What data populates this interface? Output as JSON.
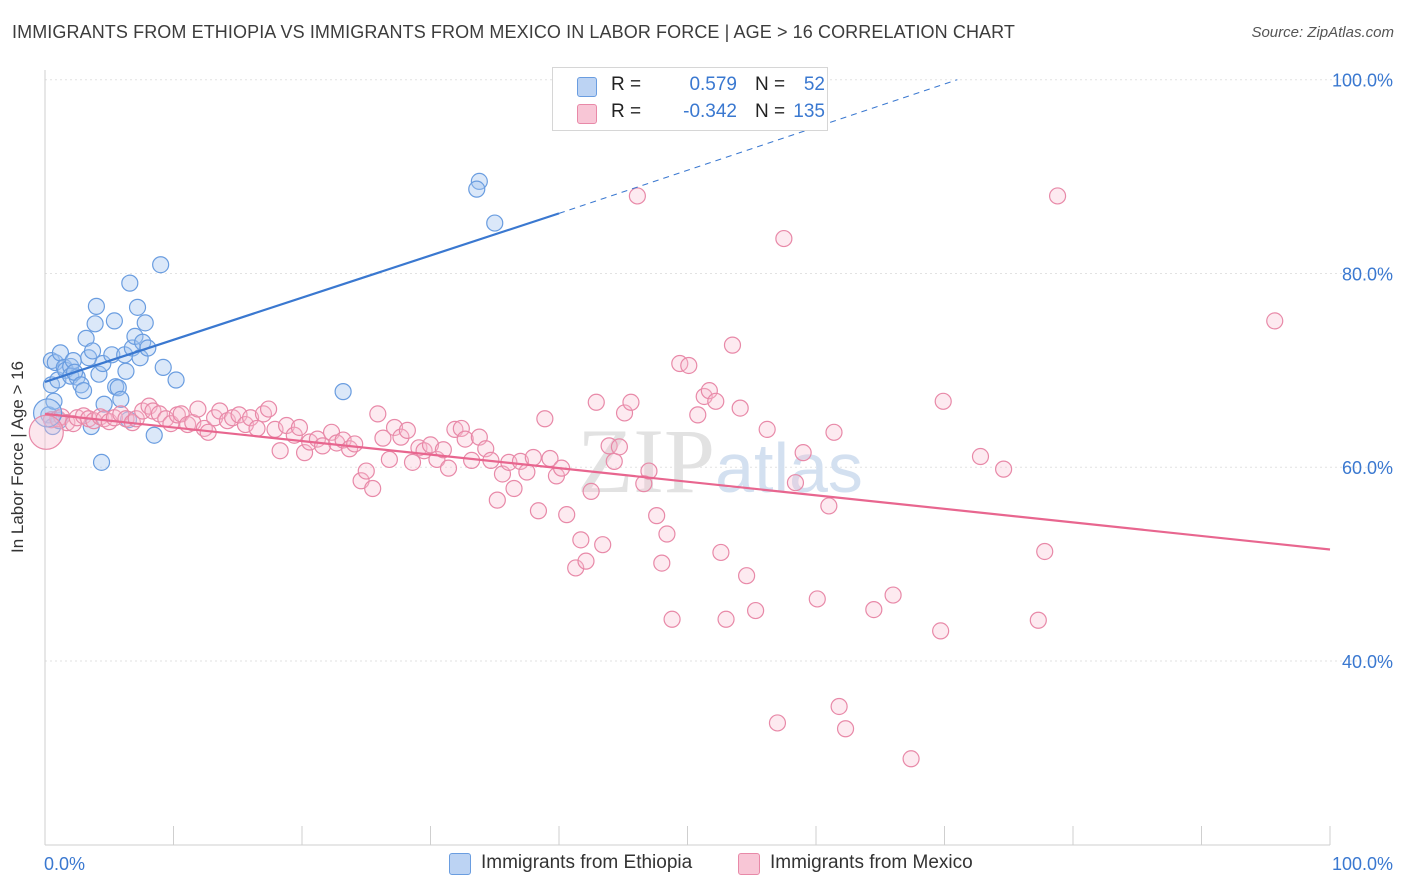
{
  "title": "IMMIGRANTS FROM ETHIOPIA VS IMMIGRANTS FROM MEXICO IN LABOR FORCE | AGE > 16 CORRELATION CHART",
  "source": "Source: ZipAtlas.com",
  "watermark": "ZIPatlas",
  "legend": {
    "r_label": "R =",
    "n_label": "N =",
    "series": [
      {
        "name": "Immigrants from Ethiopia",
        "r": "0.579",
        "n": "52",
        "color": "#6a9de0",
        "fill": "#bcd3f3"
      },
      {
        "name": "Immigrants from Mexico",
        "r": "-0.342",
        "n": "135",
        "color": "#e889a8",
        "fill": "#f8c6d6"
      }
    ]
  },
  "chart_data": {
    "type": "scatter",
    "title": "IMMIGRANTS FROM ETHIOPIA VS IMMIGRANTS FROM MEXICO IN LABOR FORCE | AGE > 16 CORRELATION CHART",
    "xlabel": "",
    "ylabel": "In Labor Force | Age > 16",
    "xlim": [
      0,
      100
    ],
    "ylim": [
      21,
      101
    ],
    "x_tick_labels": [
      {
        "value": 0,
        "label": "0.0%"
      },
      {
        "value": 100,
        "label": "100.0%"
      }
    ],
    "y_tick_labels": [
      {
        "value": 40,
        "label": "40.0%"
      },
      {
        "value": 60,
        "label": "60.0%"
      },
      {
        "value": 80,
        "label": "80.0%"
      },
      {
        "value": 100,
        "label": "100.0%"
      }
    ],
    "grid": true,
    "legend_position": "top-center",
    "series": [
      {
        "name": "Immigrants from Ethiopia",
        "color": "#3a78d0",
        "trend": {
          "x0": 0,
          "y0": 68.8,
          "x1": 40,
          "y1": 86.2,
          "dash_x1": 71,
          "dash_y1": 100
        },
        "points": [
          [
            0.3,
            65.4
          ],
          [
            0.5,
            68.5
          ],
          [
            0.7,
            66.8
          ],
          [
            1.0,
            69.0
          ],
          [
            0.5,
            71.0
          ],
          [
            0.8,
            70.8
          ],
          [
            1.2,
            71.8
          ],
          [
            1.5,
            70.3
          ],
          [
            1.6,
            70.0
          ],
          [
            2.0,
            70.4
          ],
          [
            2.2,
            71.0
          ],
          [
            2.0,
            69.4
          ],
          [
            2.5,
            69.3
          ],
          [
            2.3,
            69.8
          ],
          [
            2.8,
            68.5
          ],
          [
            3.0,
            67.9
          ],
          [
            3.2,
            73.3
          ],
          [
            3.4,
            71.3
          ],
          [
            3.7,
            72.0
          ],
          [
            3.9,
            74.8
          ],
          [
            4.0,
            76.6
          ],
          [
            4.2,
            69.6
          ],
          [
            4.5,
            70.7
          ],
          [
            4.6,
            66.5
          ],
          [
            5.2,
            71.6
          ],
          [
            5.4,
            75.1
          ],
          [
            5.5,
            68.3
          ],
          [
            5.7,
            68.2
          ],
          [
            5.9,
            67.0
          ],
          [
            6.2,
            71.6
          ],
          [
            6.3,
            69.9
          ],
          [
            6.5,
            64.9
          ],
          [
            6.6,
            79.0
          ],
          [
            6.8,
            72.3
          ],
          [
            7.0,
            73.5
          ],
          [
            7.2,
            76.5
          ],
          [
            7.4,
            71.3
          ],
          [
            7.6,
            72.9
          ],
          [
            7.8,
            74.9
          ],
          [
            8.0,
            72.3
          ],
          [
            8.5,
            63.3
          ],
          [
            9.0,
            80.9
          ],
          [
            9.2,
            70.3
          ],
          [
            10.2,
            69.0
          ],
          [
            3.6,
            64.2
          ],
          [
            4.4,
            60.5
          ],
          [
            0.6,
            64.2
          ],
          [
            1.1,
            64.8
          ],
          [
            33.8,
            89.5
          ],
          [
            33.6,
            88.7
          ],
          [
            35.0,
            85.2
          ],
          [
            23.2,
            67.8
          ]
        ]
      },
      {
        "name": "Immigrants from Mexico",
        "color": "#e8668f",
        "trend": {
          "x0": 0,
          "y0": 65.5,
          "x1": 100,
          "y1": 51.5
        },
        "points": [
          [
            0.5,
            64.9
          ],
          [
            1.0,
            65.0
          ],
          [
            1.3,
            65.2
          ],
          [
            1.7,
            64.6
          ],
          [
            2.2,
            64.5
          ],
          [
            2.5,
            65.1
          ],
          [
            3.0,
            65.3
          ],
          [
            3.4,
            65.0
          ],
          [
            3.8,
            64.8
          ],
          [
            4.3,
            65.2
          ],
          [
            4.6,
            65.0
          ],
          [
            5.0,
            64.7
          ],
          [
            5.4,
            65.1
          ],
          [
            5.9,
            65.5
          ],
          [
            6.3,
            65.0
          ],
          [
            6.8,
            64.6
          ],
          [
            7.1,
            65.0
          ],
          [
            7.6,
            65.8
          ],
          [
            8.1,
            66.3
          ],
          [
            8.4,
            65.8
          ],
          [
            8.9,
            65.5
          ],
          [
            9.4,
            65.0
          ],
          [
            9.8,
            64.5
          ],
          [
            10.3,
            65.4
          ],
          [
            10.6,
            65.5
          ],
          [
            11.1,
            64.4
          ],
          [
            11.5,
            64.6
          ],
          [
            11.9,
            66.0
          ],
          [
            12.4,
            64.0
          ],
          [
            12.7,
            63.6
          ],
          [
            13.2,
            65.1
          ],
          [
            13.6,
            65.8
          ],
          [
            14.2,
            64.8
          ],
          [
            14.6,
            65.1
          ],
          [
            15.1,
            65.4
          ],
          [
            15.6,
            64.4
          ],
          [
            16.0,
            65.1
          ],
          [
            16.5,
            64.0
          ],
          [
            17.0,
            65.5
          ],
          [
            17.4,
            66.0
          ],
          [
            17.9,
            63.9
          ],
          [
            18.3,
            61.7
          ],
          [
            18.8,
            64.3
          ],
          [
            19.4,
            63.3
          ],
          [
            19.8,
            64.1
          ],
          [
            20.2,
            61.5
          ],
          [
            20.6,
            62.6
          ],
          [
            21.2,
            62.9
          ],
          [
            21.6,
            62.2
          ],
          [
            22.3,
            63.6
          ],
          [
            22.7,
            62.5
          ],
          [
            23.2,
            62.8
          ],
          [
            23.7,
            61.9
          ],
          [
            24.1,
            62.4
          ],
          [
            24.6,
            58.6
          ],
          [
            25.0,
            59.6
          ],
          [
            25.5,
            57.8
          ],
          [
            25.9,
            65.5
          ],
          [
            26.3,
            63.0
          ],
          [
            26.8,
            60.8
          ],
          [
            27.2,
            64.1
          ],
          [
            27.7,
            63.1
          ],
          [
            28.2,
            63.8
          ],
          [
            28.6,
            60.5
          ],
          [
            29.1,
            62.0
          ],
          [
            29.5,
            61.7
          ],
          [
            30.0,
            62.3
          ],
          [
            30.5,
            60.8
          ],
          [
            31.0,
            61.8
          ],
          [
            31.4,
            59.9
          ],
          [
            31.9,
            63.9
          ],
          [
            32.4,
            64.0
          ],
          [
            32.7,
            62.9
          ],
          [
            33.2,
            60.7
          ],
          [
            33.8,
            63.1
          ],
          [
            34.3,
            61.9
          ],
          [
            34.7,
            60.7
          ],
          [
            35.2,
            56.6
          ],
          [
            35.6,
            59.3
          ],
          [
            36.1,
            60.5
          ],
          [
            36.5,
            57.8
          ],
          [
            37.0,
            60.6
          ],
          [
            37.5,
            59.5
          ],
          [
            38.0,
            61.0
          ],
          [
            38.4,
            55.5
          ],
          [
            38.9,
            65.0
          ],
          [
            39.3,
            60.9
          ],
          [
            39.8,
            59.1
          ],
          [
            40.2,
            59.9
          ],
          [
            40.6,
            55.1
          ],
          [
            41.3,
            49.6
          ],
          [
            41.7,
            52.5
          ],
          [
            42.1,
            50.3
          ],
          [
            42.5,
            57.5
          ],
          [
            42.9,
            66.7
          ],
          [
            43.4,
            52.0
          ],
          [
            43.9,
            62.2
          ],
          [
            44.3,
            60.6
          ],
          [
            44.7,
            62.1
          ],
          [
            45.1,
            65.6
          ],
          [
            45.6,
            66.7
          ],
          [
            46.1,
            88.0
          ],
          [
            46.6,
            58.3
          ],
          [
            47.0,
            59.6
          ],
          [
            47.6,
            55.0
          ],
          [
            48.0,
            50.1
          ],
          [
            48.4,
            53.1
          ],
          [
            48.8,
            44.3
          ],
          [
            49.4,
            70.7
          ],
          [
            50.1,
            70.5
          ],
          [
            50.8,
            65.4
          ],
          [
            51.3,
            67.3
          ],
          [
            51.7,
            67.9
          ],
          [
            52.2,
            66.8
          ],
          [
            52.6,
            51.2
          ],
          [
            53.0,
            44.3
          ],
          [
            53.5,
            72.6
          ],
          [
            54.1,
            66.1
          ],
          [
            54.6,
            48.8
          ],
          [
            55.3,
            45.2
          ],
          [
            56.2,
            63.9
          ],
          [
            57.0,
            33.6
          ],
          [
            57.5,
            83.6
          ],
          [
            58.4,
            58.4
          ],
          [
            59.0,
            61.5
          ],
          [
            60.1,
            46.4
          ],
          [
            61.0,
            56.0
          ],
          [
            61.4,
            63.6
          ],
          [
            61.8,
            35.3
          ],
          [
            62.3,
            33.0
          ],
          [
            64.5,
            45.3
          ],
          [
            66.0,
            46.8
          ],
          [
            67.4,
            29.9
          ],
          [
            69.7,
            43.1
          ],
          [
            69.9,
            66.8
          ],
          [
            72.8,
            61.1
          ],
          [
            74.6,
            59.8
          ],
          [
            77.3,
            44.2
          ],
          [
            77.8,
            51.3
          ],
          [
            78.8,
            88.0
          ],
          [
            95.7,
            75.1
          ]
        ]
      }
    ]
  }
}
